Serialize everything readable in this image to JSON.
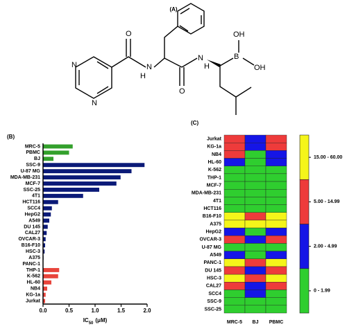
{
  "structure": {
    "label": "(A)",
    "atoms": [
      "N",
      "N",
      "O",
      "H",
      "N",
      "O",
      "N",
      "H",
      "B",
      "OH",
      "OH"
    ]
  },
  "chart_data": [
    {
      "type": "bar",
      "label": "(B)",
      "orientation": "horizontal",
      "categories": [
        "MRC-5",
        "PBMC",
        "BJ",
        "SSC-9",
        "U-87 MG",
        "MDA-MB-231",
        "MCF-7",
        "SSC-25",
        "4T1",
        "HCT116",
        "SCC4",
        "HepG2",
        "A549",
        "DU 145",
        "CAL27",
        "OVCAR-3",
        "B16-F10",
        "HSC-3",
        "A375",
        "PANC-1",
        "THP-1",
        "K-562",
        "HL-60",
        "NB4",
        "KG-1a",
        "Jurkat"
      ],
      "values": [
        0.57,
        0.5,
        0.2,
        1.95,
        1.7,
        1.49,
        1.41,
        1.08,
        0.77,
        0.29,
        0.17,
        0.15,
        0.12,
        0.09,
        0.07,
        0.05,
        0.04,
        0.03,
        0.01,
        0.005,
        0.31,
        0.29,
        0.16,
        0.08,
        0.05,
        0.04
      ],
      "colors": [
        "#33a02c",
        "#33a02c",
        "#33a02c",
        "#0b1a78",
        "#0b1a78",
        "#0b1a78",
        "#0b1a78",
        "#0b1a78",
        "#0b1a78",
        "#0b1a78",
        "#0b1a78",
        "#0b1a78",
        "#0b1a78",
        "#0b1a78",
        "#0b1a78",
        "#0b1a78",
        "#0b1a78",
        "#0b1a78",
        "#0b1a78",
        "#0b1a78",
        "#e8453c",
        "#e8453c",
        "#e8453c",
        "#e8453c",
        "#e8453c",
        "#e8453c"
      ],
      "xlabel_parts": [
        "IC",
        "50",
        "(μM)"
      ],
      "xlim": [
        0,
        2
      ],
      "xticks": [
        {
          "value": 0,
          "label": "0.0"
        },
        0.5,
        {
          "value": 1,
          "label": "1.0"
        },
        1.5,
        {
          "value": 2,
          "label": "2.0"
        }
      ]
    },
    {
      "type": "heatmap",
      "label": "(C)",
      "rows": [
        "Jurkat",
        "KG-1a",
        "NB4",
        "HL-60",
        "K-562",
        "THP-1",
        "MCF-7",
        "MDA-MB-231",
        "4T1",
        "HCT116",
        "B16-F10",
        "A375",
        "HepG2",
        "OVCAR-3",
        "U-87 MG",
        "A549",
        "PANC-1",
        "DU 145",
        "HSC-3",
        "CAL27",
        "SCC4",
        "SSC-9",
        "SSC-25"
      ],
      "columns": [
        "MRC-5",
        "BJ",
        "PBMC"
      ],
      "values": [
        [
          2,
          1,
          2
        ],
        [
          2,
          1,
          2
        ],
        [
          2,
          0,
          1
        ],
        [
          1,
          0,
          1
        ],
        [
          0,
          0,
          0
        ],
        [
          0,
          0,
          0
        ],
        [
          0,
          0,
          0
        ],
        [
          0,
          0,
          0
        ],
        [
          0,
          0,
          0
        ],
        [
          0,
          0,
          0
        ],
        [
          3,
          2,
          3
        ],
        [
          3,
          3,
          3
        ],
        [
          1,
          0,
          1
        ],
        [
          2,
          1,
          2
        ],
        [
          0,
          0,
          0
        ],
        [
          1,
          0,
          1
        ],
        [
          3,
          2,
          3
        ],
        [
          2,
          1,
          2
        ],
        [
          3,
          2,
          3
        ],
        [
          2,
          1,
          2
        ],
        [
          0,
          1,
          0
        ],
        [
          0,
          0,
          0
        ],
        [
          0,
          0,
          0
        ]
      ],
      "levels": [
        {
          "label": "0 - 1.99",
          "color": "#2fce2f"
        },
        {
          "label": "2.00 - 4.99",
          "color": "#1515e6"
        },
        {
          "label": "5.00 - 14.99",
          "color": "#ee3b3b"
        },
        {
          "label": "15.00 - 60.00",
          "color": "#f5f51a"
        }
      ]
    }
  ]
}
